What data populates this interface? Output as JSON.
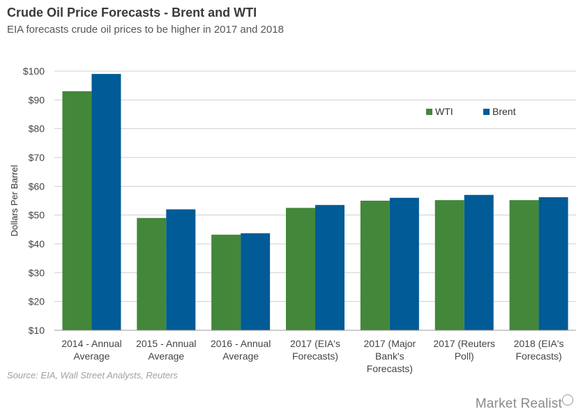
{
  "header": {
    "title": "Crude Oil Price Forecasts - Brent and WTI",
    "subtitle": "EIA forecasts crude oil prices to be higher in 2017 and 2018"
  },
  "footer": {
    "source": "Source: EIA, Wall Street Analysts, Reuters",
    "brand": "Market Realist"
  },
  "colors": {
    "wti": "#43873a",
    "brent": "#005b96",
    "grid": "#cfcfcf",
    "axis": "#999999"
  },
  "chart_data": {
    "type": "bar",
    "title": "Crude Oil Price Forecasts - Brent and WTI",
    "subtitle": "EIA forecasts crude oil prices to be higher in 2017 and 2018",
    "ylabel": "Dollars Per Barrel",
    "xlabel": "",
    "ylim": [
      10,
      100
    ],
    "yticks": [
      10,
      20,
      30,
      40,
      50,
      60,
      70,
      80,
      90,
      100
    ],
    "ytick_labels": [
      "$10",
      "$20",
      "$30",
      "$40",
      "$50",
      "$60",
      "$70",
      "$80",
      "$90",
      "$100"
    ],
    "grid": true,
    "legend_position": "top-right",
    "categories": [
      [
        "2014 - Annual",
        "Average"
      ],
      [
        "2015 - Annual",
        "Average"
      ],
      [
        "2016 - Annual",
        "Average"
      ],
      [
        "2017 (EIA's",
        "Forecasts)"
      ],
      [
        "2017 (Major",
        "Bank's",
        "Forecasts)"
      ],
      [
        "2017 (Reuters",
        "Poll)"
      ],
      [
        "2018 (EIA's",
        "Forecasts)"
      ]
    ],
    "series": [
      {
        "name": "WTI",
        "values": [
          93,
          49,
          43.2,
          52.5,
          55,
          55.2,
          55.2
        ]
      },
      {
        "name": "Brent",
        "values": [
          99,
          52,
          43.7,
          53.5,
          56,
          57,
          56.2
        ]
      }
    ]
  }
}
